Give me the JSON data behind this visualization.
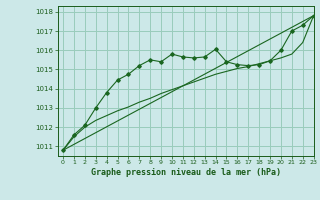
{
  "title": "Graphe pression niveau de la mer (hPa)",
  "bg_color": "#cce8e8",
  "grid_color": "#99ccbb",
  "text_color": "#1a5c1a",
  "line_color": "#1a6620",
  "xlim": [
    -0.5,
    23
  ],
  "ylim": [
    1010.5,
    1018.3
  ],
  "yticks": [
    1011,
    1012,
    1013,
    1014,
    1015,
    1016,
    1017,
    1018
  ],
  "xticks": [
    0,
    1,
    2,
    3,
    4,
    5,
    6,
    7,
    8,
    9,
    10,
    11,
    12,
    13,
    14,
    15,
    16,
    17,
    18,
    19,
    20,
    21,
    22,
    23
  ],
  "series1_x": [
    0,
    1,
    2,
    3,
    4,
    5,
    6,
    7,
    8,
    9,
    10,
    11,
    12,
    13,
    14,
    15,
    16,
    17,
    18,
    19,
    20,
    21,
    22,
    23
  ],
  "series1_y": [
    1010.8,
    1011.6,
    1012.1,
    1013.0,
    1013.8,
    1014.45,
    1014.75,
    1015.2,
    1015.5,
    1015.4,
    1015.8,
    1015.65,
    1015.6,
    1015.65,
    1016.05,
    1015.4,
    1015.25,
    1015.2,
    1015.25,
    1015.45,
    1016.0,
    1017.0,
    1017.3,
    1017.8
  ],
  "series2_x": [
    0,
    1,
    2,
    3,
    4,
    5,
    6,
    7,
    8,
    9,
    10,
    11,
    12,
    13,
    14,
    15,
    16,
    17,
    18,
    19,
    20,
    21,
    22,
    23
  ],
  "series2_y": [
    1010.8,
    1011.5,
    1012.0,
    1012.35,
    1012.6,
    1012.85,
    1013.05,
    1013.3,
    1013.5,
    1013.75,
    1013.95,
    1014.15,
    1014.35,
    1014.55,
    1014.75,
    1014.9,
    1015.05,
    1015.15,
    1015.3,
    1015.45,
    1015.6,
    1015.8,
    1016.4,
    1017.8
  ],
  "series3_x": [
    0,
    23
  ],
  "series3_y": [
    1010.8,
    1017.8
  ]
}
